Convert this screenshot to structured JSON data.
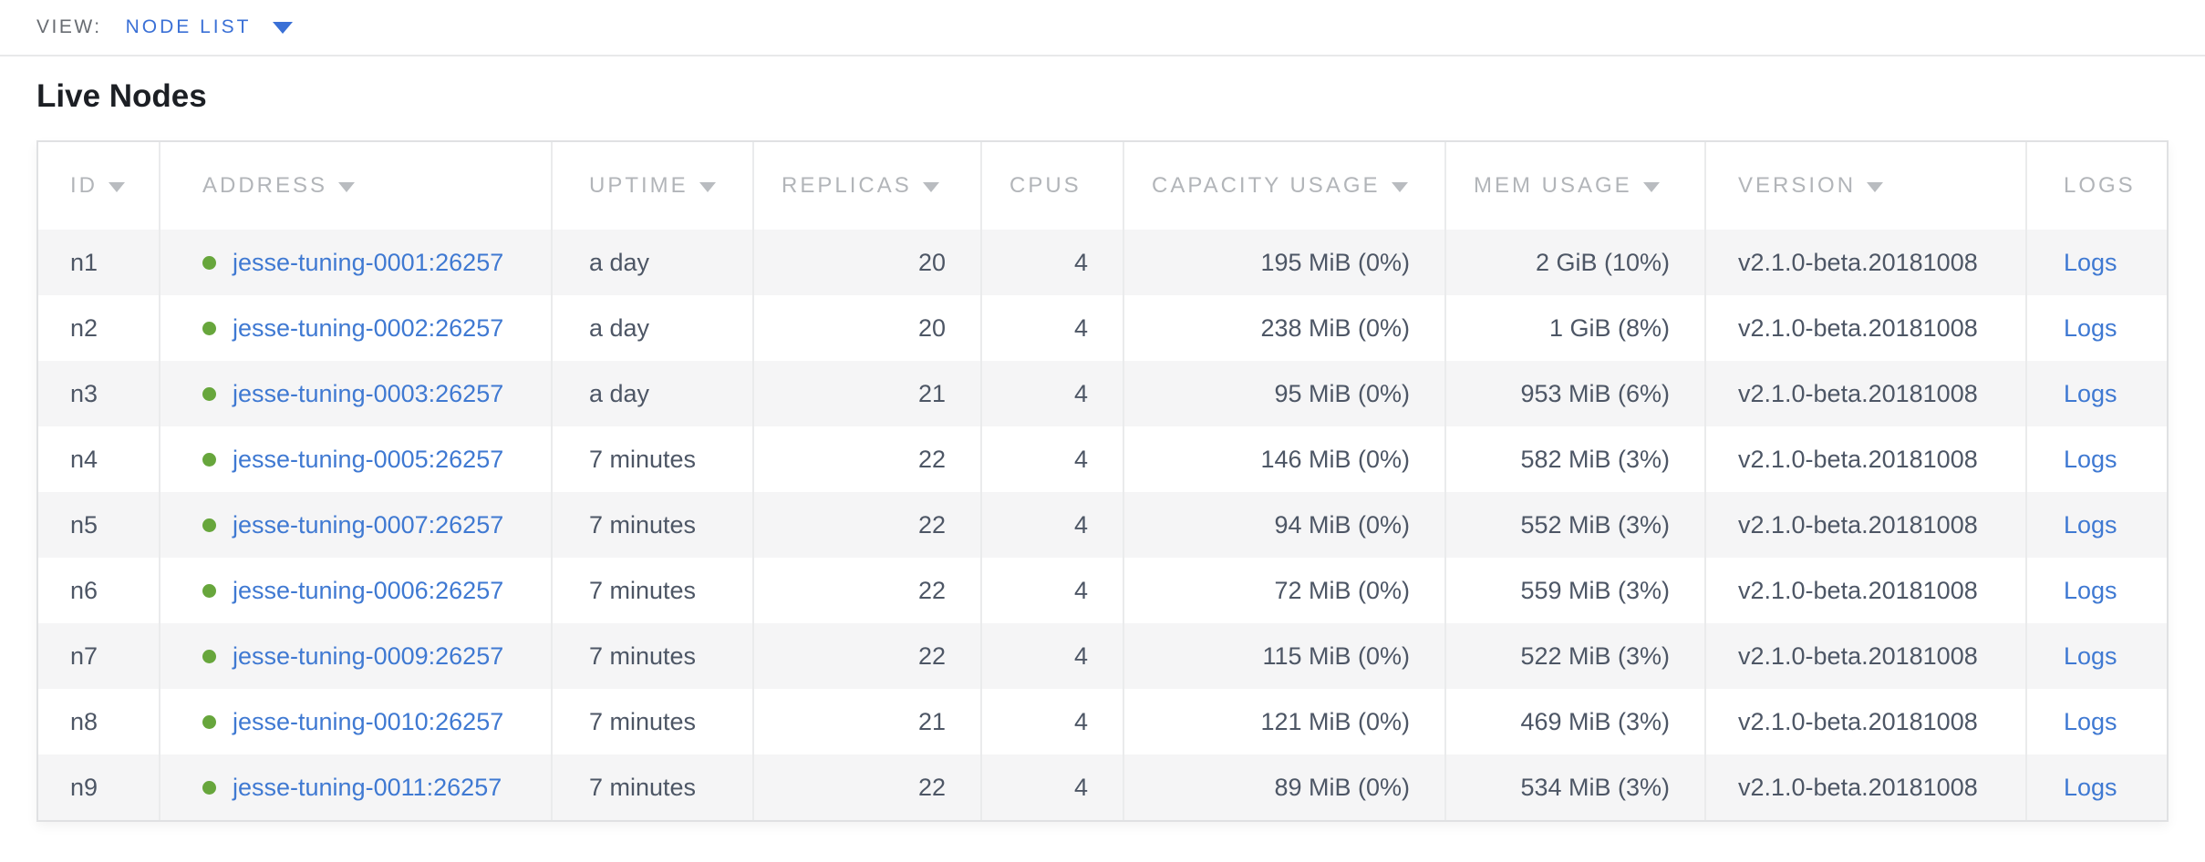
{
  "view_bar": {
    "label": "VIEW:",
    "selected": "NODE LIST",
    "dropdown_caret_icon": "caret-down-icon"
  },
  "page_title": "Live Nodes",
  "colors": {
    "accent_blue": "#3a70d6",
    "link_blue": "#3f79d2",
    "live_dot_green": "#67a63c",
    "header_gray": "#b2b5b9",
    "body_text": "#4d5665",
    "row_stripe": "#f5f5f6",
    "border": "#e0e1e3"
  },
  "table": {
    "logs_label": "Logs",
    "sort_icon": "caret-down-icon",
    "columns": [
      {
        "key": "id",
        "label": "ID",
        "sortable": true,
        "align": "left"
      },
      {
        "key": "address",
        "label": "ADDRESS",
        "sortable": true,
        "align": "left",
        "type": "link_with_status_dot"
      },
      {
        "key": "uptime",
        "label": "UPTIME",
        "sortable": true,
        "align": "left"
      },
      {
        "key": "replicas",
        "label": "REPLICAS",
        "sortable": true,
        "align": "right"
      },
      {
        "key": "cpus",
        "label": "CPUS",
        "sortable": false,
        "align": "right"
      },
      {
        "key": "capacity",
        "label": "CAPACITY USAGE",
        "sortable": true,
        "align": "right"
      },
      {
        "key": "mem",
        "label": "MEM USAGE",
        "sortable": true,
        "align": "right"
      },
      {
        "key": "version",
        "label": "VERSION",
        "sortable": true,
        "align": "left"
      },
      {
        "key": "logs",
        "label": "LOGS",
        "sortable": false,
        "align": "left",
        "type": "link"
      }
    ],
    "rows": [
      {
        "id": "n1",
        "status": "live",
        "address": "jesse-tuning-0001:26257",
        "uptime": "a day",
        "replicas": "20",
        "cpus": "4",
        "capacity": "195 MiB (0%)",
        "mem": "2 GiB (10%)",
        "version": "v2.1.0-beta.20181008"
      },
      {
        "id": "n2",
        "status": "live",
        "address": "jesse-tuning-0002:26257",
        "uptime": "a day",
        "replicas": "20",
        "cpus": "4",
        "capacity": "238 MiB (0%)",
        "mem": "1 GiB (8%)",
        "version": "v2.1.0-beta.20181008"
      },
      {
        "id": "n3",
        "status": "live",
        "address": "jesse-tuning-0003:26257",
        "uptime": "a day",
        "replicas": "21",
        "cpus": "4",
        "capacity": "95 MiB (0%)",
        "mem": "953 MiB (6%)",
        "version": "v2.1.0-beta.20181008"
      },
      {
        "id": "n4",
        "status": "live",
        "address": "jesse-tuning-0005:26257",
        "uptime": "7 minutes",
        "replicas": "22",
        "cpus": "4",
        "capacity": "146 MiB (0%)",
        "mem": "582 MiB (3%)",
        "version": "v2.1.0-beta.20181008"
      },
      {
        "id": "n5",
        "status": "live",
        "address": "jesse-tuning-0007:26257",
        "uptime": "7 minutes",
        "replicas": "22",
        "cpus": "4",
        "capacity": "94 MiB (0%)",
        "mem": "552 MiB (3%)",
        "version": "v2.1.0-beta.20181008"
      },
      {
        "id": "n6",
        "status": "live",
        "address": "jesse-tuning-0006:26257",
        "uptime": "7 minutes",
        "replicas": "22",
        "cpus": "4",
        "capacity": "72 MiB (0%)",
        "mem": "559 MiB (3%)",
        "version": "v2.1.0-beta.20181008"
      },
      {
        "id": "n7",
        "status": "live",
        "address": "jesse-tuning-0009:26257",
        "uptime": "7 minutes",
        "replicas": "22",
        "cpus": "4",
        "capacity": "115 MiB (0%)",
        "mem": "522 MiB (3%)",
        "version": "v2.1.0-beta.20181008"
      },
      {
        "id": "n8",
        "status": "live",
        "address": "jesse-tuning-0010:26257",
        "uptime": "7 minutes",
        "replicas": "21",
        "cpus": "4",
        "capacity": "121 MiB (0%)",
        "mem": "469 MiB (3%)",
        "version": "v2.1.0-beta.20181008"
      },
      {
        "id": "n9",
        "status": "live",
        "address": "jesse-tuning-0011:26257",
        "uptime": "7 minutes",
        "replicas": "22",
        "cpus": "4",
        "capacity": "89 MiB (0%)",
        "mem": "534 MiB (3%)",
        "version": "v2.1.0-beta.20181008"
      }
    ]
  }
}
